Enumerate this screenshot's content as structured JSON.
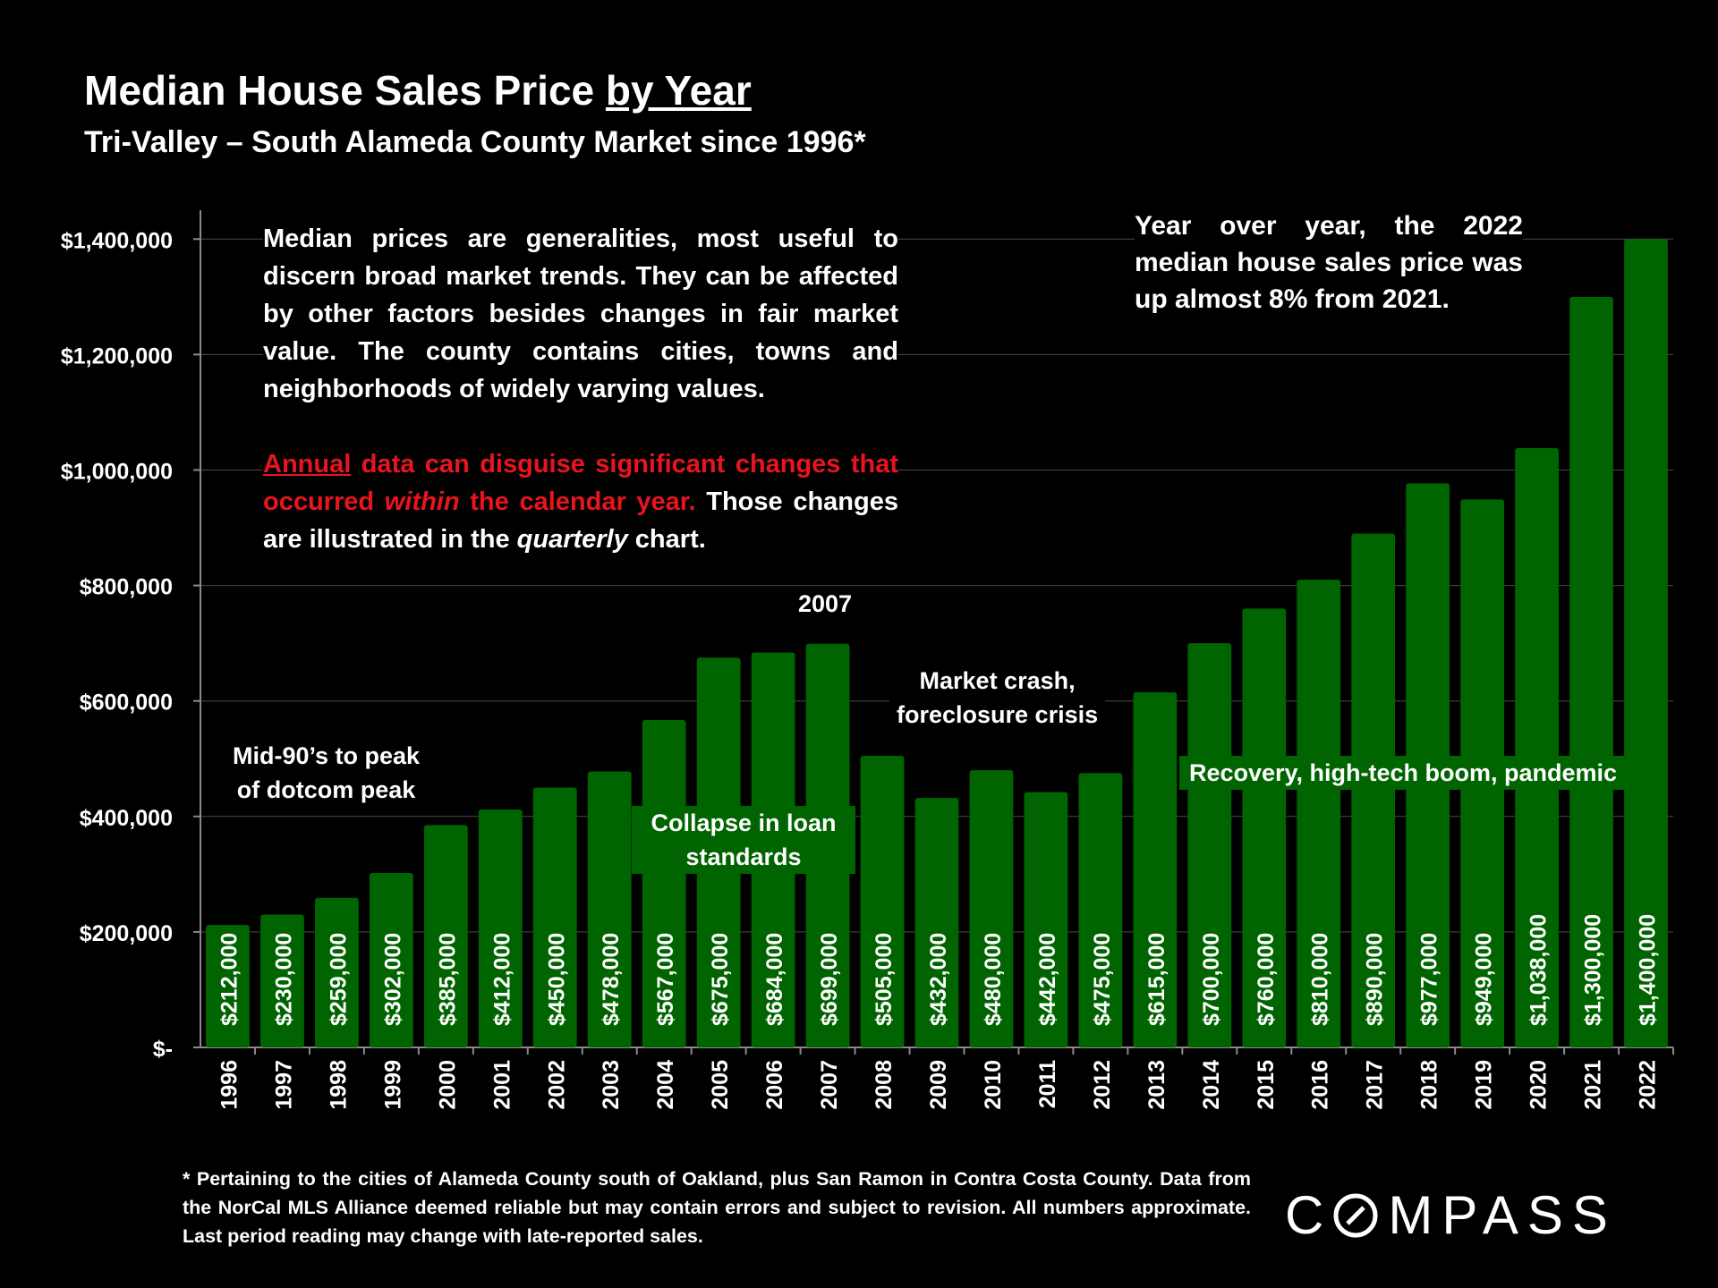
{
  "header": {
    "title_main": "Median House Sales Price ",
    "title_underlined": "by Year",
    "subtitle": "Tri-Valley – South Alameda County Market since 1996*"
  },
  "notes": {
    "generalities": "Median prices are generalities, most useful to discern broad market trends. They can be affected by other factors besides changes in fair market value. The county contains cities, towns and neighborhoods of widely varying values.",
    "red_annual": "Annual",
    "red_part1": " data can disguise significant changes that occurred ",
    "red_within": "within",
    "red_part2": " the calendar year.",
    "white_part1": " Those changes are illustrated in the ",
    "white_quarterly": "quarterly",
    "white_part2": " chart.",
    "yoy": "Year over year, the 2022 median house sales price was up almost 8% from 2021."
  },
  "annotations": {
    "dotcom_line1": "Mid-90’s to peak",
    "dotcom_line2": "of dotcom peak",
    "year_2007": "2007",
    "crash_line1": "Market crash,",
    "crash_line2": "foreclosure crisis",
    "collapse_line1": "Collapse in loan",
    "collapse_line2": "standards",
    "recovery": "Recovery, high-tech boom, pandemic"
  },
  "footnote": "* Pertaining to the cities of Alameda County south of Oakland, plus San Ramon in Contra Costa County. Data from the NorCal MLS Alliance deemed reliable but may contain errors and subject to revision. All numbers approximate. Last period reading may change with late-reported sales.",
  "logo": {
    "before": "C",
    "after": "MPASS"
  },
  "colors": {
    "bar": "#006400",
    "red_text": "#e8141e",
    "background": "#000000"
  },
  "chart_data": {
    "type": "bar",
    "title": "Median House Sales Price by Year",
    "categories": [
      "1996",
      "1997",
      "1998",
      "1999",
      "2000",
      "2001",
      "2002",
      "2003",
      "2004",
      "2005",
      "2006",
      "2007",
      "2008",
      "2009",
      "2010",
      "2011",
      "2012",
      "2013",
      "2014",
      "2015",
      "2016",
      "2017",
      "2018",
      "2019",
      "2020",
      "2021",
      "2022"
    ],
    "values": [
      212000,
      230000,
      259000,
      302000,
      385000,
      412000,
      450000,
      478000,
      567000,
      675000,
      684000,
      699000,
      505000,
      432000,
      480000,
      442000,
      475000,
      615000,
      700000,
      760000,
      810000,
      890000,
      977000,
      949000,
      1038000,
      1300000,
      1400000
    ],
    "data_labels": [
      "$212,000",
      "$230,000",
      "$259,000",
      "$302,000",
      "$385,000",
      "$412,000",
      "$450,000",
      "$478,000",
      "$567,000",
      "$675,000",
      "$684,000",
      "$699,000",
      "$505,000",
      "$432,000",
      "$480,000",
      "$442,000",
      "$475,000",
      "$615,000",
      "$700,000",
      "$760,000",
      "$810,000",
      "$890,000",
      "$977,000",
      "$949,000",
      "$1,038,000",
      "$1,300,000",
      "$1,400,000"
    ],
    "ylim": [
      0,
      1450000
    ],
    "yticks": [
      0,
      200000,
      400000,
      600000,
      800000,
      1000000,
      1200000,
      1400000
    ],
    "ytick_labels": [
      "$-",
      "$200,000",
      "$400,000",
      "$600,000",
      "$800,000",
      "$1,000,000",
      "$1,200,000",
      "$1,400,000"
    ],
    "xlabel": "",
    "ylabel": "",
    "grid": true
  }
}
